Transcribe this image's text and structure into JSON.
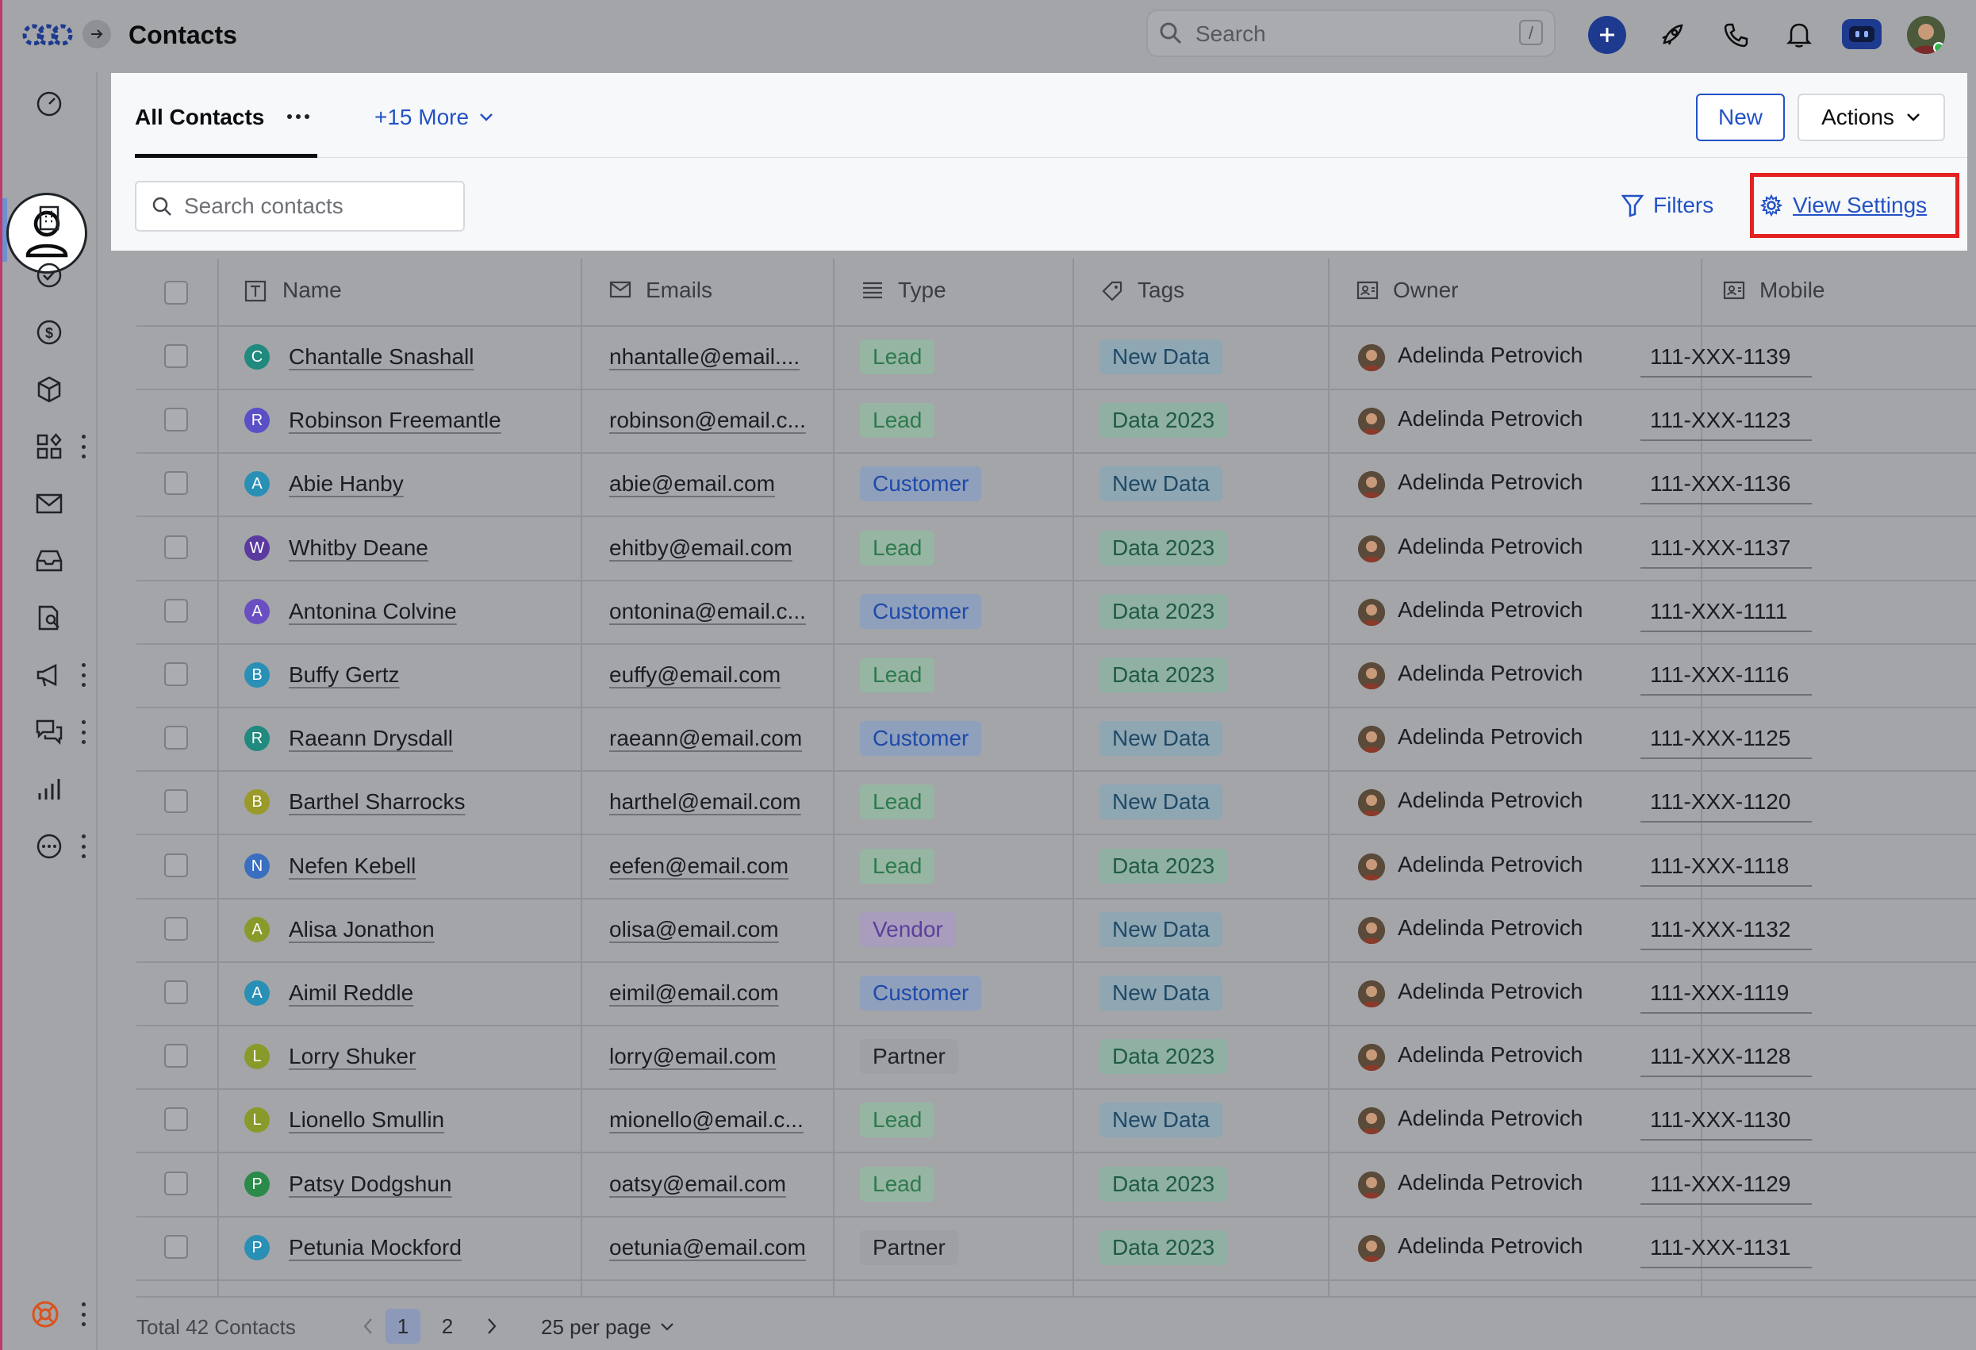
{
  "app": {
    "title": "Contacts",
    "search_placeholder": "Search",
    "search_shortcut": "/"
  },
  "tabs": {
    "active": "All Contacts",
    "more": "+15 More"
  },
  "toolbar": {
    "new_label": "New",
    "actions_label": "Actions",
    "contact_search_placeholder": "Search contacts",
    "filters_label": "Filters",
    "view_settings_label": "View Settings"
  },
  "table": {
    "columns": [
      "Name",
      "Emails",
      "Type",
      "Tags",
      "Owner",
      "Mobile"
    ],
    "rows": [
      {
        "initial": "C",
        "name": "Chantalle Snashall",
        "email": "nhantalle@email....",
        "type": "Lead",
        "tag": "New Data",
        "owner": "Adelinda Petrovich",
        "mobile": "111-XXX-1139",
        "color": "#1f8a7d"
      },
      {
        "initial": "R",
        "name": "Robinson Freemantle",
        "email": "robinson@email.c...",
        "type": "Lead",
        "tag": "Data 2023",
        "owner": "Adelinda Petrovich",
        "mobile": "111-XXX-1123",
        "color": "#5a4fc7"
      },
      {
        "initial": "A",
        "name": "Abie Hanby",
        "email": "abie@email.com",
        "type": "Customer",
        "tag": "New Data",
        "owner": "Adelinda Petrovich",
        "mobile": "111-XXX-1136",
        "color": "#2a8fb5"
      },
      {
        "initial": "W",
        "name": "Whitby Deane",
        "email": "ehitby@email.com",
        "type": "Lead",
        "tag": "Data 2023",
        "owner": "Adelinda Petrovich",
        "mobile": "111-XXX-1137",
        "color": "#5b3aa0"
      },
      {
        "initial": "A",
        "name": "Antonina Colvine",
        "email": "ontonina@email.c...",
        "type": "Customer",
        "tag": "Data 2023",
        "owner": "Adelinda Petrovich",
        "mobile": "111-XXX-1111",
        "color": "#6a4fc2"
      },
      {
        "initial": "B",
        "name": "Buffy Gertz",
        "email": "euffy@email.com",
        "type": "Lead",
        "tag": "Data 2023",
        "owner": "Adelinda Petrovich",
        "mobile": "111-XXX-1116",
        "color": "#2a8fb5"
      },
      {
        "initial": "R",
        "name": "Raeann Drysdall",
        "email": "raeann@email.com",
        "type": "Customer",
        "tag": "New Data",
        "owner": "Adelinda Petrovich",
        "mobile": "111-XXX-1125",
        "color": "#1f8a7d"
      },
      {
        "initial": "B",
        "name": "Barthel Sharrocks",
        "email": "harthel@email.com",
        "type": "Lead",
        "tag": "New Data",
        "owner": "Adelinda Petrovich",
        "mobile": "111-XXX-1120",
        "color": "#9a9a2a"
      },
      {
        "initial": "N",
        "name": "Nefen Kebell",
        "email": "eefen@email.com",
        "type": "Lead",
        "tag": "Data 2023",
        "owner": "Adelinda Petrovich",
        "mobile": "111-XXX-1118",
        "color": "#3a6fc0"
      },
      {
        "initial": "A",
        "name": "Alisa Jonathon",
        "email": "olisa@email.com",
        "type": "Vendor",
        "tag": "New Data",
        "owner": "Adelinda Petrovich",
        "mobile": "111-XXX-1132",
        "color": "#8a9a2a"
      },
      {
        "initial": "A",
        "name": "Aimil Reddle",
        "email": "eimil@email.com",
        "type": "Customer",
        "tag": "New Data",
        "owner": "Adelinda Petrovich",
        "mobile": "111-XXX-1119",
        "color": "#2a8fb5"
      },
      {
        "initial": "L",
        "name": "Lorry Shuker",
        "email": "lorry@email.com",
        "type": "Partner",
        "tag": "Data 2023",
        "owner": "Adelinda Petrovich",
        "mobile": "111-XXX-1128",
        "color": "#8a9a2a"
      },
      {
        "initial": "L",
        "name": "Lionello Smullin",
        "email": "mionello@email.c...",
        "type": "Lead",
        "tag": "New Data",
        "owner": "Adelinda Petrovich",
        "mobile": "111-XXX-1130",
        "color": "#8a9a2a"
      },
      {
        "initial": "P",
        "name": "Patsy Dodgshun",
        "email": "oatsy@email.com",
        "type": "Lead",
        "tag": "Data 2023",
        "owner": "Adelinda Petrovich",
        "mobile": "111-XXX-1129",
        "color": "#2a8a4a"
      },
      {
        "initial": "P",
        "name": "Petunia Mockford",
        "email": "oetunia@email.com",
        "type": "Partner",
        "tag": "Data 2023",
        "owner": "Adelinda Petrovich",
        "mobile": "111-XXX-1131",
        "color": "#2a8fb5"
      }
    ]
  },
  "badge_styles": {
    "Lead": {
      "bg": "#96b5a2",
      "fg": "#2e7a4f"
    },
    "Customer": {
      "bg": "#8fa0bd",
      "fg": "#1f4aa8"
    },
    "Vendor": {
      "bg": "#a89dbd",
      "fg": "#5b3f9c"
    },
    "Partner": {
      "bg": "#9ea0a4",
      "fg": "#1f2328"
    },
    "New Data": {
      "bg": "#8fa6b3",
      "fg": "#1f4a66"
    },
    "Data 2023": {
      "bg": "#8fb0a2",
      "fg": "#1f5a45"
    }
  },
  "footer": {
    "total": "Total 42 Contacts",
    "pages": [
      "1",
      "2"
    ],
    "per_page": "25 per page"
  }
}
